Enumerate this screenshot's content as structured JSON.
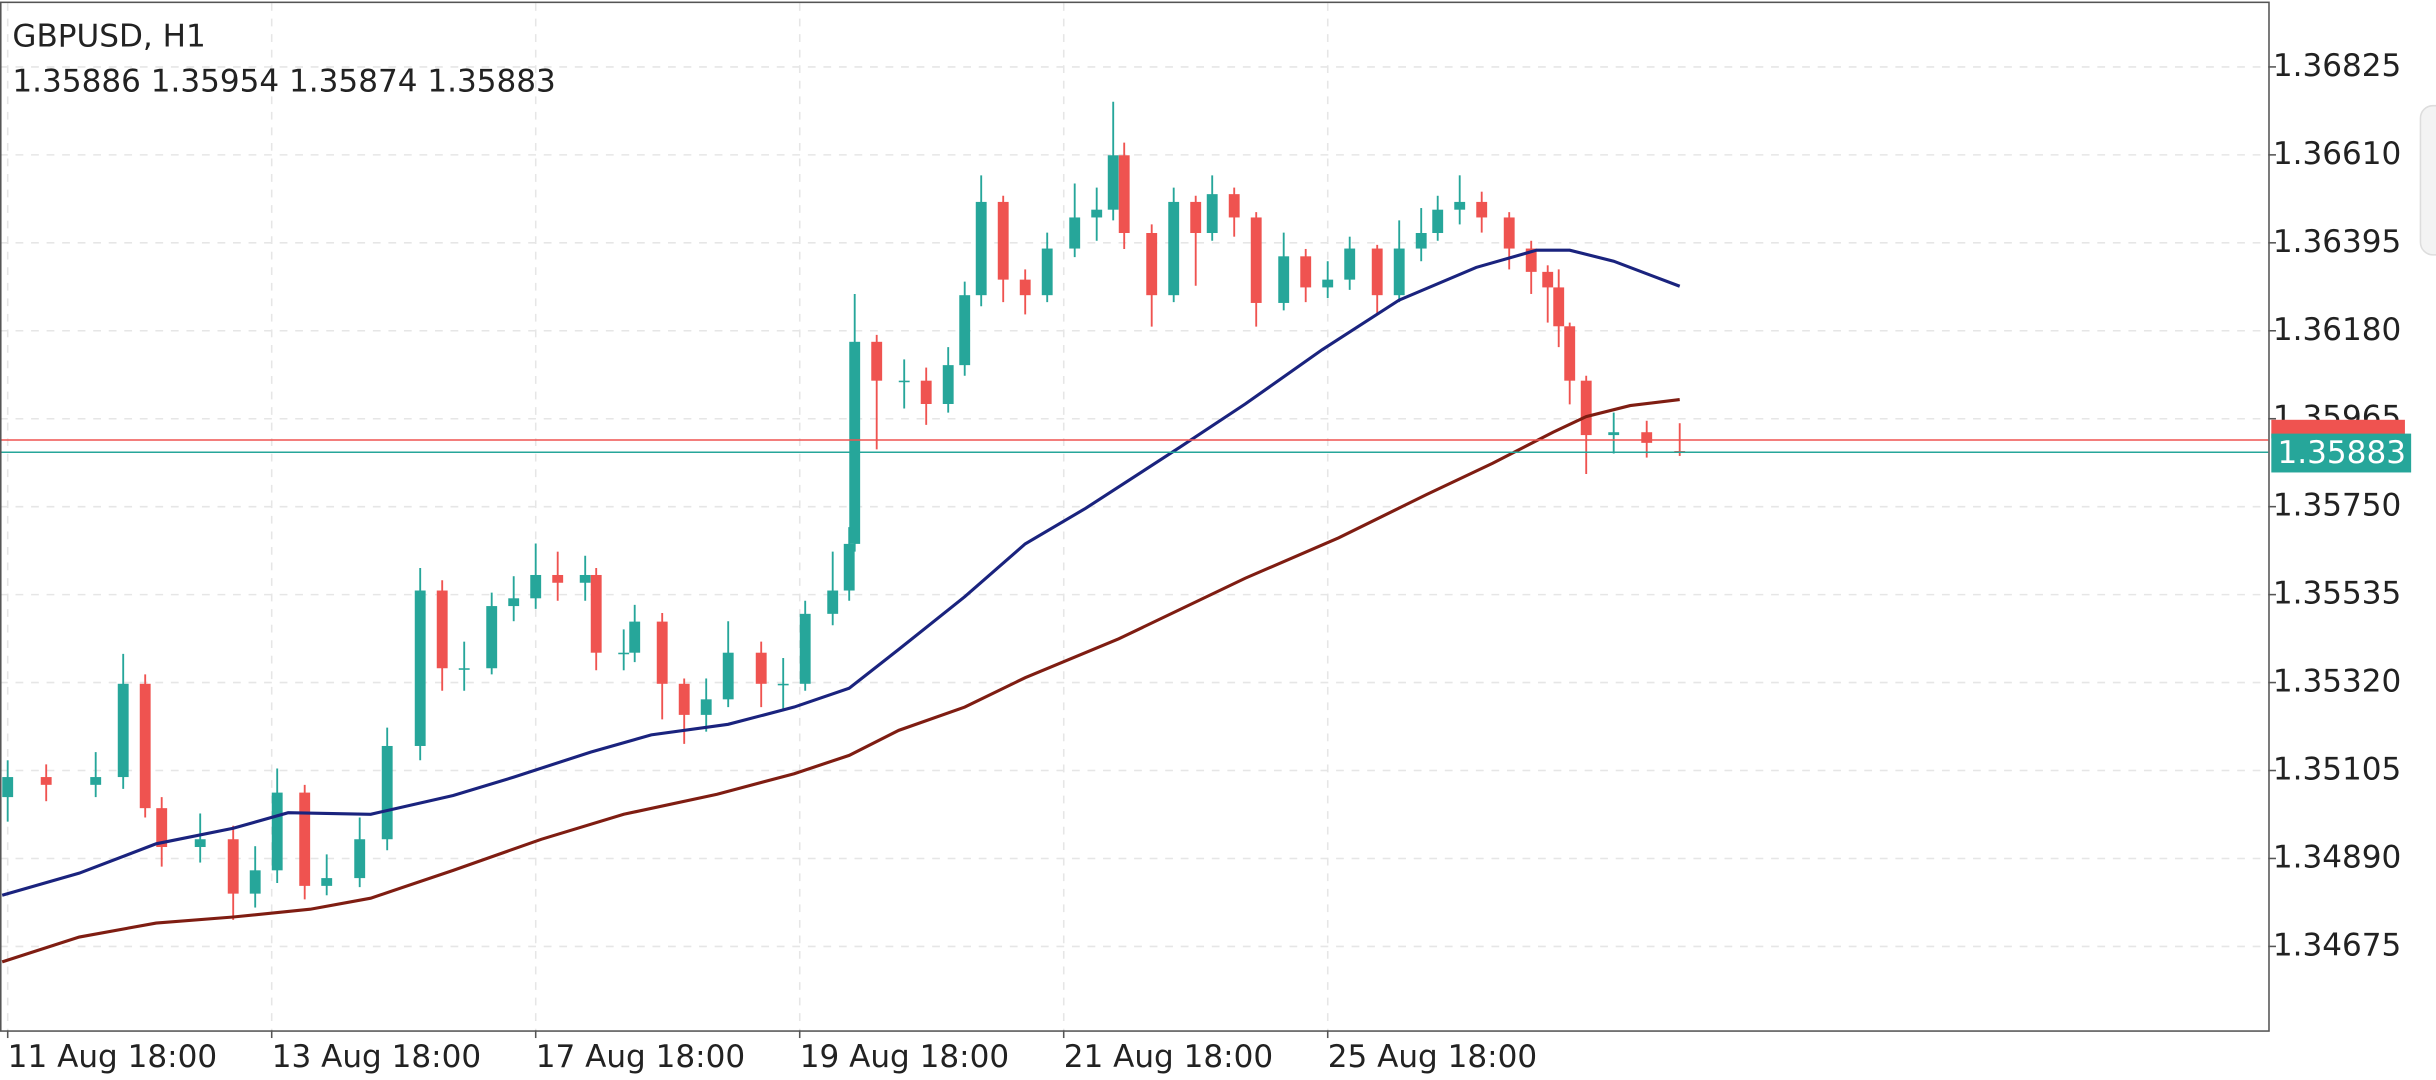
{
  "chart_data": {
    "type": "candlestick",
    "title": "GBPUSD, H1",
    "info": "1.35886 1.35954 1.35874 1.35883",
    "up_color": "#26a69a",
    "down_color": "#ef5350",
    "grid": true,
    "xlim": [
      -1.4,
      411
    ],
    "ylim": [
      1.3447,
      1.36981
    ],
    "yticks": [
      1.36825,
      {
        "value": 1.3661,
        "label": "1.36610"
      },
      1.36395,
      {
        "value": 1.3618,
        "label": "1.36180"
      },
      1.35965,
      {
        "value": 1.3575,
        "label": "1.35750"
      },
      1.35535,
      {
        "value": 1.3532,
        "label": "1.35320"
      },
      1.35105,
      {
        "value": 1.3489,
        "label": "1.34890"
      },
      1.34675
    ],
    "xticks": [
      {
        "value": 0,
        "label": "11 Aug 18:00"
      },
      {
        "value": 48,
        "label": "13 Aug 18:00"
      },
      {
        "value": 96,
        "label": "17 Aug 18:00"
      },
      {
        "value": 144,
        "label": "19 Aug 18:00"
      },
      {
        "value": 192,
        "label": "21 Aug 18:00"
      },
      {
        "value": 240,
        "label": "25 Aug 18:00"
      }
    ],
    "x": [
      0,
      7,
      16,
      21,
      25,
      28,
      35,
      41,
      45,
      49,
      54,
      58,
      64,
      69,
      75,
      79,
      83,
      88,
      92,
      96,
      100,
      105,
      107,
      112,
      114,
      119,
      123,
      127,
      131,
      137,
      141,
      145,
      150,
      153,
      154,
      158,
      163,
      167,
      171,
      174,
      177,
      181,
      185,
      189,
      194,
      198,
      201,
      203,
      208,
      212,
      216,
      219,
      223,
      227,
      232,
      236,
      240,
      244,
      249,
      253,
      257,
      260,
      264,
      268,
      273,
      277,
      280,
      282,
      284,
      287,
      292,
      298,
      304
    ],
    "open": [
      1.3504,
      1.35089,
      1.3507,
      1.35089,
      1.35317,
      1.35013,
      1.34918,
      1.34937,
      1.34804,
      1.34861,
      1.35051,
      1.34823,
      1.34842,
      1.34937,
      1.35165,
      1.35545,
      1.35355,
      1.35355,
      1.35507,
      1.35526,
      1.35583,
      1.35564,
      1.35583,
      1.35393,
      1.35393,
      1.35469,
      1.35317,
      1.35241,
      1.35279,
      1.35393,
      1.35317,
      1.35317,
      1.35488,
      1.35545,
      1.35659,
      1.36153,
      1.36058,
      1.36058,
      1.36001,
      1.36096,
      1.36267,
      1.36495,
      1.36305,
      1.36267,
      1.36381,
      1.36457,
      1.36476,
      1.36609,
      1.36419,
      1.36267,
      1.36495,
      1.36419,
      1.36514,
      1.36457,
      1.36248,
      1.36362,
      1.36286,
      1.36305,
      1.36381,
      1.36267,
      1.36381,
      1.36419,
      1.36476,
      1.36495,
      1.36457,
      1.36381,
      1.36324,
      1.36286,
      1.36191,
      1.36058,
      1.35925,
      1.35932,
      1.35886
    ],
    "high": [
      1.3513,
      1.3512,
      1.3515,
      1.3539,
      1.3534,
      1.3504,
      1.35,
      1.3497,
      1.3492,
      1.3511,
      1.3507,
      1.349,
      1.3499,
      1.3521,
      1.356,
      1.3557,
      1.3542,
      1.3554,
      1.3558,
      1.3566,
      1.3564,
      1.3563,
      1.356,
      1.3545,
      1.3551,
      1.3549,
      1.3533,
      1.3533,
      1.3547,
      1.3542,
      1.3538,
      1.3552,
      1.3564,
      1.357,
      1.3627,
      1.3617,
      1.3611,
      1.3609,
      1.3614,
      1.363,
      1.3656,
      1.3651,
      1.3633,
      1.3642,
      1.3654,
      1.3653,
      1.3674,
      1.3664,
      1.3644,
      1.3653,
      1.3651,
      1.3656,
      1.3653,
      1.3647,
      1.3642,
      1.3638,
      1.3635,
      1.3641,
      1.3639,
      1.3645,
      1.3648,
      1.3651,
      1.3656,
      1.3652,
      1.3647,
      1.364,
      1.3634,
      1.3633,
      1.362,
      1.3607,
      1.3598,
      1.3596,
      1.35954
    ],
    "low": [
      1.3498,
      1.3503,
      1.3504,
      1.3506,
      1.3499,
      1.3487,
      1.3488,
      1.3474,
      1.3477,
      1.3483,
      1.3479,
      1.348,
      1.3482,
      1.3491,
      1.3513,
      1.353,
      1.353,
      1.3534,
      1.3547,
      1.355,
      1.3552,
      1.3552,
      1.3535,
      1.3535,
      1.3537,
      1.3523,
      1.3517,
      1.352,
      1.3526,
      1.3526,
      1.3525,
      1.353,
      1.3546,
      1.3552,
      1.3564,
      1.3589,
      1.3599,
      1.3595,
      1.3598,
      1.3607,
      1.3624,
      1.3625,
      1.3622,
      1.3625,
      1.3636,
      1.364,
      1.3645,
      1.3638,
      1.3619,
      1.3625,
      1.3629,
      1.364,
      1.3641,
      1.3619,
      1.3623,
      1.3625,
      1.3626,
      1.3628,
      1.3622,
      1.3625,
      1.3635,
      1.364,
      1.3644,
      1.3642,
      1.3633,
      1.3627,
      1.362,
      1.3614,
      1.36,
      1.3583,
      1.3588,
      1.3587,
      1.35874
    ],
    "close": [
      1.35089,
      1.3507,
      1.35089,
      1.35317,
      1.35013,
      1.34918,
      1.34937,
      1.34804,
      1.34861,
      1.35051,
      1.34823,
      1.34842,
      1.34937,
      1.35165,
      1.35545,
      1.35355,
      1.35355,
      1.35507,
      1.35526,
      1.35583,
      1.35564,
      1.35583,
      1.35393,
      1.35393,
      1.35469,
      1.35317,
      1.35241,
      1.35279,
      1.35393,
      1.35317,
      1.35317,
      1.35488,
      1.35545,
      1.35659,
      1.36153,
      1.36058,
      1.36058,
      1.36001,
      1.36096,
      1.36267,
      1.36495,
      1.36305,
      1.36267,
      1.36381,
      1.36457,
      1.36476,
      1.36609,
      1.36419,
      1.36267,
      1.36495,
      1.36419,
      1.36514,
      1.36457,
      1.36248,
      1.36362,
      1.36286,
      1.36305,
      1.36381,
      1.36267,
      1.36381,
      1.36419,
      1.36476,
      1.36495,
      1.36457,
      1.36381,
      1.36324,
      1.36286,
      1.36191,
      1.36058,
      1.35925,
      1.35932,
      1.35906,
      1.35883
    ],
    "series": [
      {
        "color": "#1a237e",
        "x": [
          -1,
          13,
          27,
          41,
          51,
          66,
          81,
          92,
          106,
          117,
          131,
          143,
          153,
          162,
          174,
          185,
          196,
          213,
          225,
          239,
          253,
          267,
          278,
          284,
          292,
          304
        ],
        "values": [
          1.348,
          1.34854,
          1.34926,
          1.34964,
          1.35002,
          1.34998,
          1.35044,
          1.35089,
          1.3515,
          1.35192,
          1.35218,
          1.3526,
          1.35306,
          1.35401,
          1.3553,
          1.35659,
          1.35746,
          1.35894,
          1.36001,
          1.36134,
          1.36255,
          1.36335,
          1.36377,
          1.36377,
          1.3635,
          1.36289
        ]
      },
      {
        "color": "#7f1d12",
        "x": [
          -1,
          13,
          27,
          41,
          55,
          66,
          81,
          97,
          112,
          129,
          143,
          153,
          162,
          174,
          185,
          202,
          225,
          242,
          258,
          270,
          281,
          287,
          295,
          304
        ],
        "values": [
          1.34637,
          1.34698,
          1.34732,
          1.34747,
          1.34766,
          1.34793,
          1.34861,
          1.34937,
          1.34998,
          1.35047,
          1.35097,
          1.35142,
          1.35203,
          1.3526,
          1.35332,
          1.35427,
          1.35575,
          1.35674,
          1.3578,
          1.35856,
          1.35932,
          1.3597,
          1.35997,
          1.36012
        ]
      }
    ],
    "ask_line": 1.35913,
    "bid_line": 1.35883
  }
}
